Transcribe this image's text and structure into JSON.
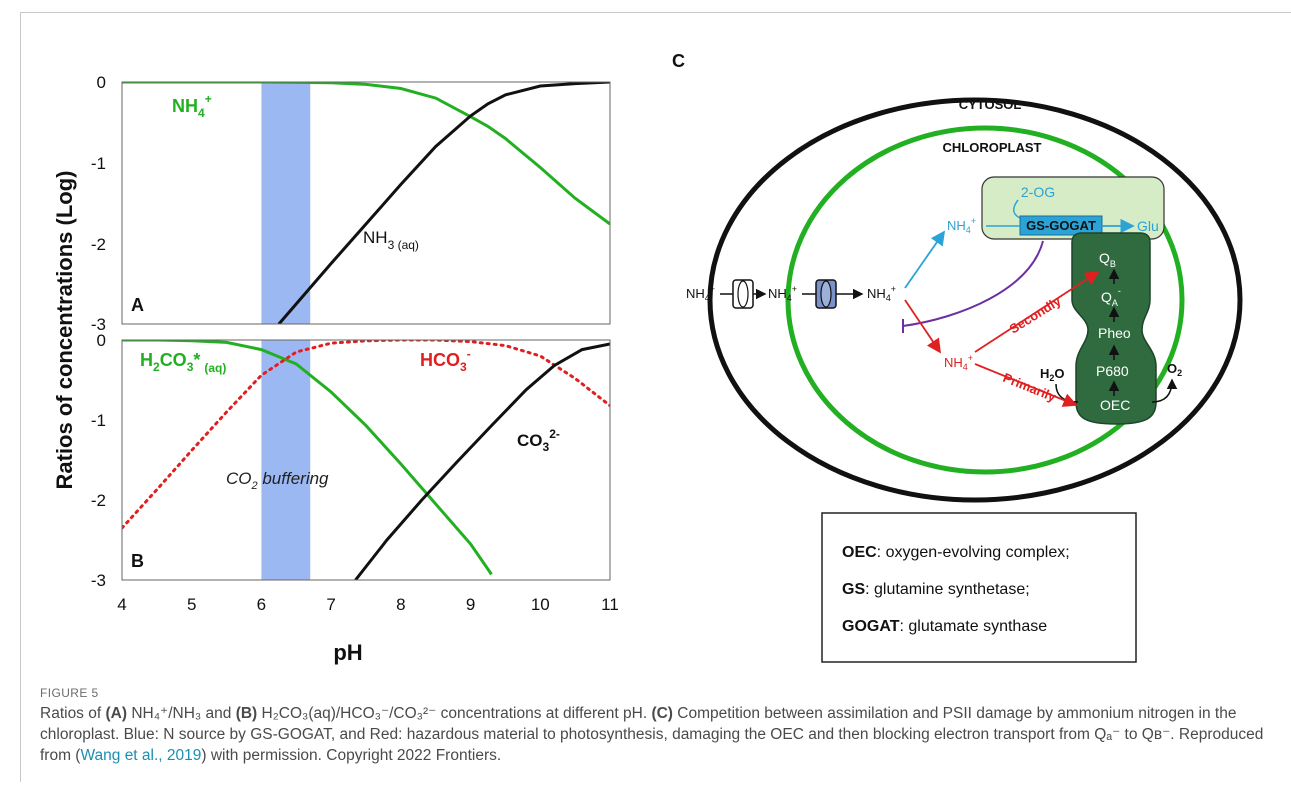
{
  "figure": {
    "label": "FIGURE 5",
    "caption": {
      "p1": "Ratios of ",
      "a_tag": "(A)",
      "p2": " NH₄⁺/NH₃ and ",
      "b_tag": "(B)",
      "p3": " H₂CO₃(aq)/HCO₃⁻/CO₃²⁻ concentrations at different pH. ",
      "c_tag": "(C)",
      "p4": " Competition between assimilation and PSII damage by ammonium nitrogen in the chloroplast. Blue: N source by GS-GOGAT, and Red: hazardous material to photosynthesis, damaging the OEC and then blocking electron transport from Qₐ⁻ to Qʙ⁻. Reproduced from (",
      "link": "Wang et al., 2019",
      "p5": ") with permission. Copyright 2022 Frontiers."
    }
  },
  "colors": {
    "green": "#22b022",
    "black": "#111111",
    "red": "#e02020",
    "band": "#9cb8f2",
    "blue": "#2ba3d6",
    "purple": "#6b2fa3",
    "darkgreen": "#2f6b3e",
    "lightgreen": "#d6ecc6"
  },
  "chart_data": [
    {
      "type": "line",
      "panel": "A",
      "ylabel": "Ratios of concentrations (Log)",
      "xlim": [
        4,
        11
      ],
      "ylim": [
        -3,
        0
      ],
      "yticks": [
        "0",
        "-1",
        "-2",
        "-3"
      ],
      "shaded_band": [
        6.0,
        6.7
      ],
      "series": [
        {
          "name": "NH4+",
          "color": "#22b022",
          "x": [
            4,
            5,
            6,
            7,
            7.5,
            8,
            8.5,
            9,
            9.25,
            9.5,
            10,
            10.5,
            11
          ],
          "y": [
            0,
            0,
            0,
            -0.01,
            -0.03,
            -0.08,
            -0.2,
            -0.43,
            -0.55,
            -0.7,
            -1.06,
            -1.44,
            -1.76
          ]
        },
        {
          "name": "NH3 (aq)",
          "color": "#111111",
          "x": [
            6.25,
            7,
            7.5,
            8,
            8.5,
            9,
            9.25,
            9.5,
            10,
            10.5,
            11
          ],
          "y": [
            -3,
            -2.25,
            -1.76,
            -1.27,
            -0.8,
            -0.42,
            -0.27,
            -0.16,
            -0.05,
            -0.02,
            0
          ]
        }
      ],
      "labels": {
        "a": "NH",
        "a_sub": "4",
        "a_sup": "+",
        "b": "NH",
        "b_sub": "3 (aq)"
      }
    },
    {
      "type": "line",
      "panel": "B",
      "xlabel": "pH",
      "xlim": [
        4,
        11
      ],
      "ylim": [
        -3,
        0
      ],
      "xticks": [
        "4",
        "5",
        "6",
        "7",
        "8",
        "9",
        "10",
        "11"
      ],
      "yticks": [
        "0",
        "-1",
        "-2",
        "-3"
      ],
      "shaded_band": [
        6.0,
        6.7
      ],
      "band_label": "CO₂ buffering",
      "series": [
        {
          "name": "H2CO3* (aq)",
          "color": "#22b022",
          "x": [
            4,
            4.5,
            5,
            5.5,
            6,
            6.5,
            7,
            7.5,
            8,
            8.5,
            9,
            9.3
          ],
          "y": [
            0,
            0,
            -0.01,
            -0.03,
            -0.12,
            -0.3,
            -0.65,
            -1.07,
            -1.55,
            -2.05,
            -2.55,
            -2.93
          ]
        },
        {
          "name": "HCO3-",
          "color": "#e02020",
          "style": "dotted",
          "x": [
            4,
            4.5,
            5,
            5.5,
            6,
            6.5,
            7,
            7.5,
            8,
            8.5,
            9,
            9.5,
            10,
            10.5,
            11
          ],
          "y": [
            -2.35,
            -1.87,
            -1.38,
            -0.9,
            -0.44,
            -0.15,
            -0.04,
            -0.01,
            0,
            0,
            -0.02,
            -0.07,
            -0.2,
            -0.48,
            -0.82
          ]
        },
        {
          "name": "CO3 2-",
          "color": "#111111",
          "x": [
            7.35,
            7.8,
            8.3,
            8.8,
            9.3,
            9.8,
            10.2,
            10.6,
            11
          ],
          "y": [
            -3,
            -2.5,
            -2.0,
            -1.53,
            -1.07,
            -0.62,
            -0.32,
            -0.12,
            -0.05
          ]
        }
      ],
      "labels": {
        "a": "H",
        "a_1": "2",
        "a_2": "CO",
        "a_3": "3",
        "a_4": "*",
        "a_5": "(aq)",
        "b": "HCO",
        "b_sub": "3",
        "b_sup": "-",
        "c": "CO",
        "c_sub": "3",
        "c_sup": "2-",
        "band_pre": "CO",
        "band_sub": "2",
        "band_post": " buffering"
      }
    }
  ],
  "panel_labels": {
    "a": "A",
    "b": "B",
    "c": "C"
  },
  "diagram": {
    "cytosol": "CYTOSOL",
    "chloroplast": "CHLOROPLAST",
    "og": "2-OG",
    "gs_gogat": "GS-GOGAT",
    "glu": "Glu",
    "nh": "NH",
    "nh_sub": "4",
    "nh_sup": "+",
    "secondly": "Secondly",
    "primarily": "Primarily",
    "h2o_a": "H",
    "h2o_b": "2",
    "h2o_c": "O",
    "o2_a": "O",
    "o2_b": "2",
    "qb_a": "Q",
    "qb_b": "B",
    "qa_a": "Q",
    "qa_b": "A",
    "qa_c": "-",
    "pheo": "Pheo",
    "p680": "P680",
    "oec": "OEC"
  },
  "legend_box": {
    "l1_key": "OEC",
    "l1_val": ": oxygen-evolving complex;",
    "l2_key": "GS",
    "l2_val": ": glutamine synthetase;",
    "l3_key": "GOGAT",
    "l3_val": ": glutamate synthase"
  }
}
